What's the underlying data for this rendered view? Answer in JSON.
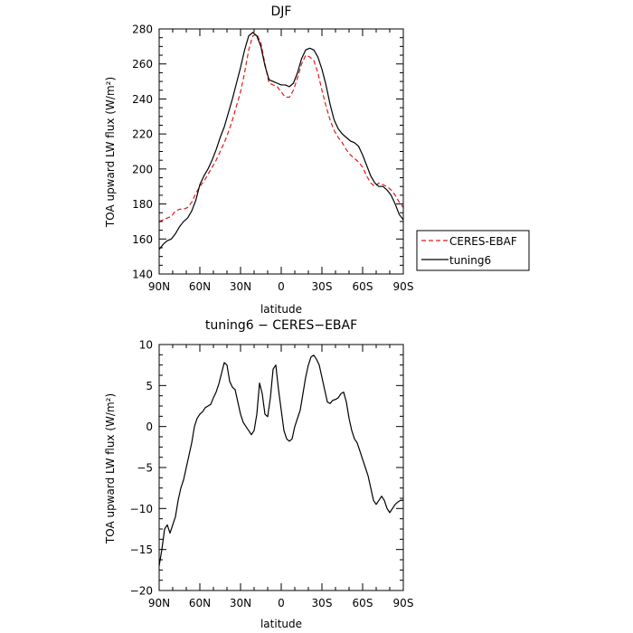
{
  "chart_data": [
    {
      "type": "line",
      "title": "DJF",
      "xlabel": "latitude",
      "ylabel": "TOA upward LW flux (W/m²)",
      "ylim": [
        140,
        280
      ],
      "yticks": [
        140,
        160,
        180,
        200,
        220,
        240,
        260,
        280
      ],
      "xticks": [
        {
          "value": 90,
          "label": "90N"
        },
        {
          "value": 60,
          "label": "60N"
        },
        {
          "value": 30,
          "label": "30N"
        },
        {
          "value": 0,
          "label": "0"
        },
        {
          "value": -30,
          "label": "30S"
        },
        {
          "value": -60,
          "label": "60S"
        },
        {
          "value": -90,
          "label": "90S"
        }
      ],
      "xlim": [
        90,
        -90
      ],
      "legend_position": "right",
      "series": [
        {
          "name": "CERES-EBAF",
          "color": "#e41a1c",
          "dash": true,
          "x": [
            90,
            87,
            84,
            81,
            78,
            75,
            72,
            69,
            66,
            63,
            60,
            57,
            54,
            51,
            48,
            45,
            42,
            39,
            36,
            33,
            30,
            27,
            24,
            21,
            18,
            15,
            12,
            9,
            6,
            3,
            0,
            -3,
            -6,
            -9,
            -12,
            -15,
            -18,
            -21,
            -24,
            -27,
            -30,
            -33,
            -36,
            -39,
            -42,
            -45,
            -48,
            -51,
            -54,
            -57,
            -60,
            -63,
            -66,
            -69,
            -72,
            -75,
            -78,
            -81,
            -84,
            -87,
            -90
          ],
          "y": [
            170,
            171,
            172,
            173,
            176,
            177,
            177,
            178,
            181,
            186,
            190,
            193,
            197,
            201,
            205,
            210,
            215,
            221,
            228,
            236,
            244,
            255,
            268,
            276,
            277,
            272,
            260,
            249,
            248,
            247,
            244,
            241,
            241,
            245,
            252,
            260,
            265,
            264,
            262,
            255,
            245,
            236,
            228,
            222,
            218,
            215,
            211,
            208,
            206,
            204,
            201,
            196,
            192,
            190,
            192,
            191,
            190,
            188,
            185,
            181,
            178
          ]
        },
        {
          "name": "tuning6",
          "color": "#000000",
          "dash": false,
          "x": [
            90,
            87,
            84,
            81,
            78,
            75,
            72,
            69,
            66,
            63,
            60,
            57,
            54,
            51,
            48,
            45,
            42,
            39,
            36,
            33,
            30,
            27,
            24,
            21,
            18,
            15,
            12,
            9,
            6,
            3,
            0,
            -3,
            -6,
            -9,
            -12,
            -15,
            -18,
            -21,
            -24,
            -27,
            -30,
            -33,
            -36,
            -39,
            -42,
            -45,
            -48,
            -51,
            -54,
            -57,
            -60,
            -63,
            -66,
            -69,
            -72,
            -75,
            -78,
            -81,
            -84,
            -87,
            -90
          ],
          "y": [
            154,
            157,
            159,
            160,
            163,
            167,
            170,
            172,
            176,
            182,
            191,
            196,
            200,
            205,
            211,
            218,
            224,
            232,
            240,
            249,
            258,
            268,
            276,
            278,
            276,
            270,
            259,
            251,
            250,
            249,
            248,
            248,
            247,
            249,
            255,
            263,
            268,
            269,
            268,
            264,
            257,
            248,
            237,
            228,
            223,
            220,
            218,
            216,
            215,
            213,
            208,
            202,
            196,
            192,
            190,
            190,
            188,
            185,
            180,
            174,
            171
          ]
        }
      ]
    },
    {
      "type": "line",
      "title": "tuning6 − CERES−EBAF",
      "xlabel": "latitude",
      "ylabel": "TOA upward LW flux (W/m²)",
      "ylim": [
        -20,
        10
      ],
      "yticks": [
        -20,
        -15,
        -10,
        -5,
        0,
        5,
        10
      ],
      "xticks": [
        {
          "value": 90,
          "label": "90N"
        },
        {
          "value": 60,
          "label": "60N"
        },
        {
          "value": 30,
          "label": "30N"
        },
        {
          "value": 0,
          "label": "0"
        },
        {
          "value": -30,
          "label": "30S"
        },
        {
          "value": -60,
          "label": "60S"
        },
        {
          "value": -90,
          "label": "90S"
        }
      ],
      "xlim": [
        90,
        -90
      ],
      "series": [
        {
          "color": "#000000",
          "dash": false,
          "x": [
            90,
            88,
            86,
            84,
            82,
            80,
            78,
            76,
            74,
            72,
            70,
            68,
            66,
            64,
            62,
            60,
            58,
            56,
            54,
            52,
            50,
            48,
            46,
            44,
            42,
            40,
            38,
            36,
            34,
            32,
            30,
            28,
            26,
            24,
            22,
            20,
            18,
            16,
            14,
            12,
            10,
            8,
            6,
            4,
            2,
            0,
            -2,
            -4,
            -6,
            -8,
            -10,
            -12,
            -14,
            -16,
            -18,
            -20,
            -22,
            -24,
            -26,
            -28,
            -30,
            -32,
            -34,
            -36,
            -38,
            -40,
            -42,
            -44,
            -46,
            -48,
            -50,
            -52,
            -54,
            -56,
            -58,
            -60,
            -62,
            -64,
            -66,
            -68,
            -70,
            -72,
            -74,
            -76,
            -78,
            -80,
            -82,
            -84,
            -86,
            -88,
            -90
          ],
          "y": [
            -17,
            -15,
            -12.5,
            -12,
            -13,
            -12,
            -11,
            -9,
            -7.5,
            -6.5,
            -5,
            -3.5,
            -2,
            0,
            1,
            1.5,
            1.8,
            2.3,
            2.5,
            2.7,
            3.5,
            4.2,
            5.2,
            6.5,
            7.8,
            7.5,
            5.5,
            4.8,
            4.5,
            3,
            1.5,
            0.5,
            0,
            -0.5,
            -1,
            -0.5,
            1.5,
            5.3,
            4,
            1.5,
            1.2,
            3.5,
            7,
            7.5,
            4.5,
            2,
            -0.5,
            -1.5,
            -1.8,
            -1.5,
            0,
            1,
            2,
            4,
            6,
            7.5,
            8.5,
            8.7,
            8.2,
            7.5,
            6,
            4.5,
            3,
            2.8,
            3.2,
            3.3,
            3.5,
            4,
            4.2,
            3,
            1,
            -0.5,
            -1.5,
            -2,
            -3,
            -4,
            -5,
            -6,
            -7.5,
            -9,
            -9.5,
            -9,
            -8.5,
            -9,
            -10,
            -10.5,
            -10,
            -9.5,
            -9.2,
            -9,
            -9
          ]
        }
      ]
    }
  ]
}
